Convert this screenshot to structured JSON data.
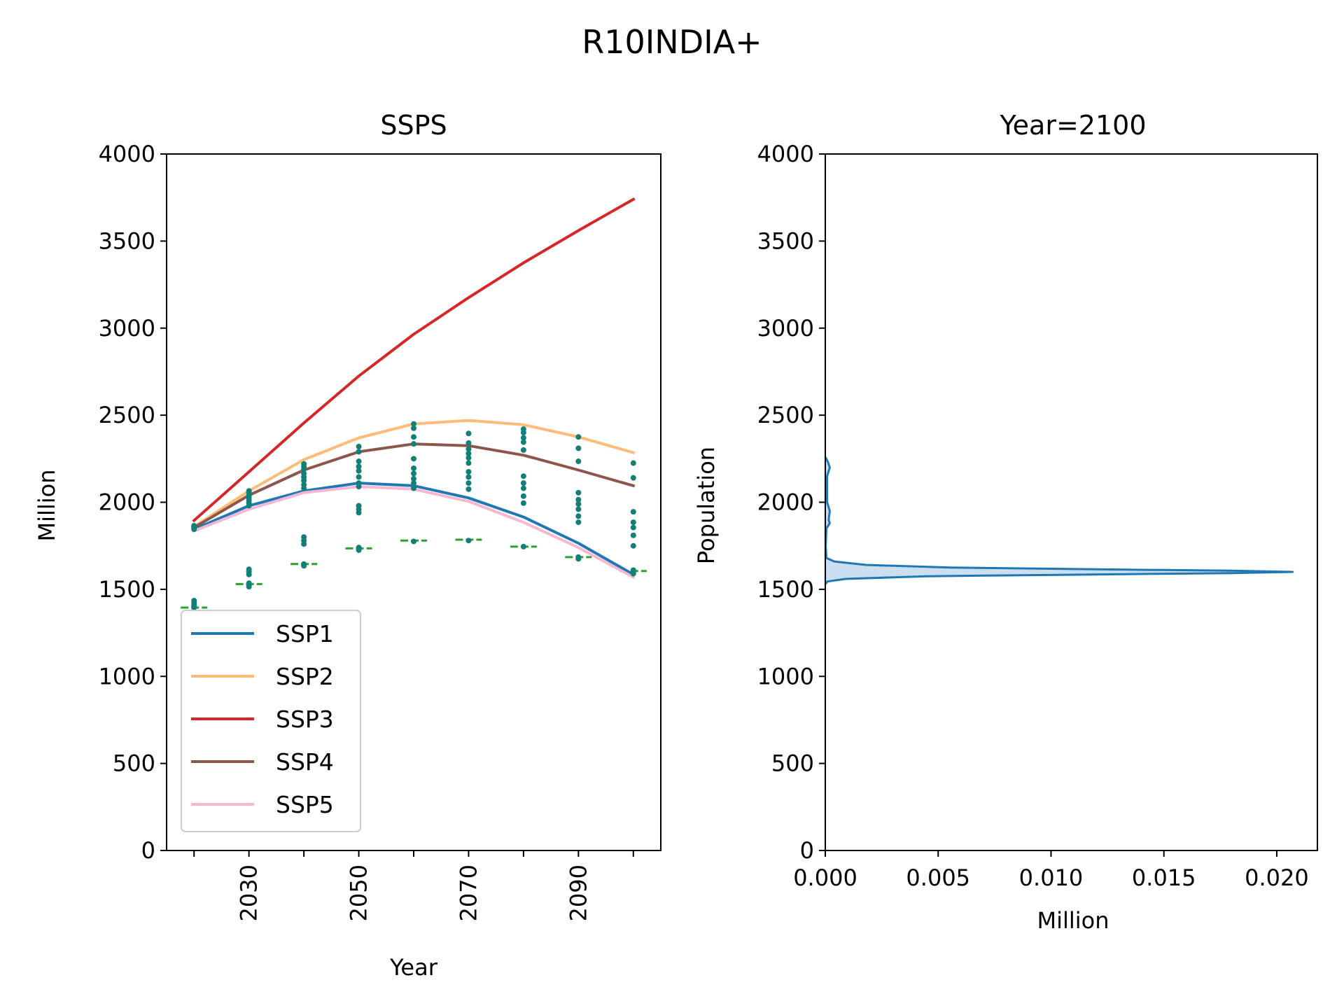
{
  "figure_title": "R10INDIA+",
  "colors": {
    "SSP1": "#1f77b4",
    "SSP2": "#ffbb78",
    "SSP3": "#d62728",
    "SSP4": "#8c564b",
    "SSP5": "#f7b6d2",
    "markers": "#138078",
    "median": "#2ca02c",
    "density_line": "#1f77b4",
    "density_fill": "#c6dbef"
  },
  "chart_data": [
    {
      "type": "line",
      "title": "SSPS",
      "xlabel": "Year",
      "ylabel": "Million",
      "xlim": [
        2015,
        2105
      ],
      "ylim": [
        0,
        4000
      ],
      "x_ticks": [
        2020,
        2030,
        2040,
        2050,
        2060,
        2070,
        2080,
        2090,
        2100
      ],
      "x_tick_labels": [
        "",
        "2030",
        "",
        "2050",
        "",
        "2070",
        "",
        "2090",
        ""
      ],
      "y_ticks": [
        0,
        500,
        1000,
        1500,
        2000,
        2500,
        3000,
        3500,
        4000
      ],
      "y_tick_labels": [
        "0",
        "500",
        "1000",
        "1500",
        "2000",
        "2500",
        "3000",
        "3500",
        "4000"
      ],
      "legend_position": "lower-left",
      "x": [
        2020,
        2030,
        2040,
        2050,
        2060,
        2070,
        2080,
        2090,
        2100
      ],
      "series": [
        {
          "name": "SSP1",
          "values": [
            1845,
            1980,
            2065,
            2110,
            2095,
            2025,
            1915,
            1765,
            1585
          ]
        },
        {
          "name": "SSP2",
          "values": [
            1860,
            2065,
            2245,
            2370,
            2450,
            2470,
            2445,
            2375,
            2285
          ]
        },
        {
          "name": "SSP3",
          "values": [
            1895,
            2175,
            2455,
            2725,
            2965,
            3175,
            3375,
            3560,
            3740
          ]
        },
        {
          "name": "SSP4",
          "values": [
            1855,
            2040,
            2185,
            2290,
            2335,
            2325,
            2270,
            2185,
            2095
          ]
        },
        {
          "name": "SSP5",
          "values": [
            1835,
            1960,
            2055,
            2090,
            2075,
            2005,
            1885,
            1740,
            1570
          ]
        }
      ],
      "scatter_points": [
        {
          "x": 2020,
          "y": [
            1395,
            1400,
            1405,
            1415,
            1425,
            1435,
            1845,
            1850,
            1855,
            1860,
            1865
          ]
        },
        {
          "x": 2030,
          "y": [
            1515,
            1525,
            1535,
            1585,
            1600,
            1615,
            1980,
            1995,
            2010,
            2025,
            2040,
            2055,
            2065
          ]
        },
        {
          "x": 2040,
          "y": [
            1635,
            1645,
            1760,
            1780,
            1800,
            2080,
            2100,
            2125,
            2145,
            2165,
            2190,
            2205,
            2220
          ]
        },
        {
          "x": 2050,
          "y": [
            1725,
            1735,
            1740,
            1940,
            1960,
            1980,
            2090,
            2110,
            2145,
            2180,
            2205,
            2235,
            2290,
            2320
          ]
        },
        {
          "x": 2060,
          "y": [
            1775,
            2080,
            2110,
            2135,
            2165,
            2195,
            2250,
            2335,
            2375,
            2425,
            2450
          ]
        },
        {
          "x": 2070,
          "y": [
            1780,
            2075,
            2110,
            2145,
            2175,
            2225,
            2255,
            2280,
            2305,
            2340,
            2395
          ]
        },
        {
          "x": 2080,
          "y": [
            1745,
            1995,
            2035,
            2080,
            2110,
            2150,
            2300,
            2345,
            2370,
            2400,
            2420
          ]
        },
        {
          "x": 2090,
          "y": [
            1675,
            1685,
            1885,
            1920,
            1960,
            1990,
            2015,
            2055,
            2235,
            2310,
            2375
          ]
        },
        {
          "x": 2100,
          "y": [
            1590,
            1600,
            1610,
            1750,
            1810,
            1855,
            1885,
            1945,
            2140,
            2225
          ]
        }
      ],
      "median_dashes": [
        {
          "x": 2020,
          "y": 1395
        },
        {
          "x": 2030,
          "y": 1530
        },
        {
          "x": 2040,
          "y": 1645
        },
        {
          "x": 2050,
          "y": 1735
        },
        {
          "x": 2060,
          "y": 1780
        },
        {
          "x": 2070,
          "y": 1785
        },
        {
          "x": 2080,
          "y": 1745
        },
        {
          "x": 2090,
          "y": 1685
        },
        {
          "x": 2100,
          "y": 1605
        }
      ]
    },
    {
      "type": "area",
      "title": "Year=2100",
      "xlabel": "Million",
      "ylabel": "Population",
      "xlim": [
        0,
        0.0218
      ],
      "ylim": [
        0,
        4000
      ],
      "x_ticks": [
        0,
        0.005,
        0.01,
        0.015,
        0.02
      ],
      "x_tick_labels": [
        "0.000",
        "0.005",
        "0.010",
        "0.015",
        "0.020"
      ],
      "y_ticks": [
        0,
        500,
        1000,
        1500,
        2000,
        2500,
        3000,
        3500,
        4000
      ],
      "y_tick_labels": [
        "0",
        "500",
        "1000",
        "1500",
        "2000",
        "2500",
        "3000",
        "3500",
        "4000"
      ],
      "density_y": [
        1530,
        1545,
        1560,
        1575,
        1585,
        1593,
        1600,
        1607,
        1615,
        1625,
        1640,
        1660,
        1680,
        1750,
        1850,
        1880,
        1900,
        1950,
        2000,
        2150,
        2200,
        2230,
        2260
      ],
      "density_x": [
        0,
        0.0001,
        0.0009,
        0.0045,
        0.0118,
        0.018,
        0.0207,
        0.018,
        0.012,
        0.0055,
        0.0018,
        0.0004,
        5e-05,
        2e-05,
        5e-05,
        0.0002,
        0.00015,
        0.0002,
        8e-05,
        8e-05,
        0.0002,
        0.00012,
        0
      ]
    }
  ]
}
